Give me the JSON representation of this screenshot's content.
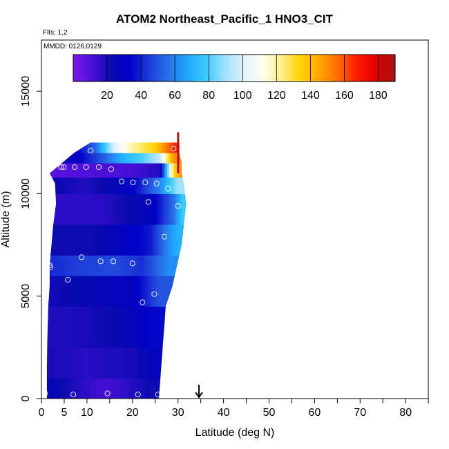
{
  "title": "ATOM2 Northeast_Pacific_1 HNO3_CIT",
  "flights_label": "Flts: 1,2",
  "date_label": "MMDD: 0126,0129",
  "chart_data": {
    "type": "heatmap",
    "title": "ATOM2 Northeast_Pacific_1 HNO3_CIT",
    "xlabel": "Latitude (deg N)",
    "ylabel": "Altitude (m)",
    "xlim": [
      0,
      85
    ],
    "ylim": [
      0,
      17500
    ],
    "x_ticks": [
      0,
      5,
      10,
      20,
      30,
      40,
      50,
      60,
      70,
      80
    ],
    "y_ticks": [
      0,
      5000,
      10000,
      15000
    ],
    "colorbar": {
      "ticks": [
        20,
        40,
        60,
        80,
        100,
        120,
        140,
        160,
        180
      ],
      "range": [
        0,
        190
      ],
      "colors": [
        "#7b1be8",
        "#4a10d8",
        "#0a0ab0",
        "#0000c8",
        "#1e3cd8",
        "#2870e8",
        "#1ea8ff",
        "#3ccaff",
        "#9fe0ff",
        "#dff2ff",
        "#fffff0",
        "#ffee88",
        "#ffd400",
        "#ffa500",
        "#ff6a00",
        "#ff1a00",
        "#e00000",
        "#a01414"
      ]
    },
    "arrow_latitude": 34.6,
    "curtain_edge": {
      "alt": [
        0,
        1500,
        3000,
        4500,
        5500,
        6500,
        7500,
        8500,
        9500,
        10500,
        11000,
        11500,
        12000,
        12500
      ],
      "lat_min": [
        1.2,
        1.2,
        1.3,
        1.5,
        1.8,
        1.8,
        2.2,
        2.6,
        3.2,
        3.0,
        1.8,
        4.5,
        7.2,
        10.8
      ],
      "lat_max": [
        25.8,
        26.3,
        26.8,
        27.3,
        28.8,
        29.8,
        30.8,
        31.3,
        31.8,
        31.3,
        30.8,
        30.8,
        30.3,
        30.3
      ]
    },
    "points": [
      {
        "lat": 0.8,
        "alt": 250
      },
      {
        "lat": 7.0,
        "alt": 200
      },
      {
        "lat": 14.5,
        "alt": 250
      },
      {
        "lat": 21.2,
        "alt": 200
      },
      {
        "lat": 25.6,
        "alt": 200
      },
      {
        "lat": 5.8,
        "alt": 5800
      },
      {
        "lat": 1.8,
        "alt": 6500
      },
      {
        "lat": 2.0,
        "alt": 6400
      },
      {
        "lat": 8.8,
        "alt": 6900
      },
      {
        "lat": 13.0,
        "alt": 6700
      },
      {
        "lat": 15.8,
        "alt": 6700
      },
      {
        "lat": 20.0,
        "alt": 6600
      },
      {
        "lat": 22.2,
        "alt": 4700
      },
      {
        "lat": 24.8,
        "alt": 5100
      },
      {
        "lat": 27.0,
        "alt": 7900
      },
      {
        "lat": 23.5,
        "alt": 9600
      },
      {
        "lat": 30.0,
        "alt": 9400
      },
      {
        "lat": 4.3,
        "alt": 11300
      },
      {
        "lat": 4.9,
        "alt": 11300
      },
      {
        "lat": 7.3,
        "alt": 11300
      },
      {
        "lat": 9.8,
        "alt": 11300
      },
      {
        "lat": 12.6,
        "alt": 11300
      },
      {
        "lat": 15.3,
        "alt": 11200
      },
      {
        "lat": 17.6,
        "alt": 10600
      },
      {
        "lat": 20.1,
        "alt": 10550
      },
      {
        "lat": 22.8,
        "alt": 10550
      },
      {
        "lat": 25.3,
        "alt": 10500
      },
      {
        "lat": 27.8,
        "alt": 10250
      },
      {
        "lat": 10.8,
        "alt": 12100
      },
      {
        "lat": 29.0,
        "alt": 12200
      }
    ],
    "rows": [
      {
        "alt_from": 0,
        "alt_to": 1000,
        "values": [
          [
            0,
            28
          ],
          [
            8,
            18
          ],
          [
            14,
            12
          ],
          [
            24,
            22
          ]
        ]
      },
      {
        "alt_from": 1000,
        "alt_to": 2500,
        "values": [
          [
            0,
            20
          ],
          [
            10,
            17
          ],
          [
            20,
            20
          ],
          [
            25,
            28
          ]
        ]
      },
      {
        "alt_from": 2500,
        "alt_to": 4500,
        "values": [
          [
            0,
            18
          ],
          [
            10,
            20
          ],
          [
            18,
            24
          ],
          [
            24,
            35
          ]
        ]
      },
      {
        "alt_from": 4500,
        "alt_to": 6000,
        "values": [
          [
            0,
            20
          ],
          [
            10,
            24
          ],
          [
            20,
            30
          ],
          [
            26,
            50
          ]
        ]
      },
      {
        "alt_from": 6000,
        "alt_to": 7000,
        "values": [
          [
            0,
            40
          ],
          [
            8,
            45
          ],
          [
            16,
            48
          ],
          [
            22,
            42
          ],
          [
            28,
            62
          ]
        ]
      },
      {
        "alt_from": 7000,
        "alt_to": 8500,
        "values": [
          [
            0,
            22
          ],
          [
            12,
            22
          ],
          [
            24,
            38
          ],
          [
            28,
            62
          ],
          [
            30,
            70
          ]
        ]
      },
      {
        "alt_from": 8500,
        "alt_to": 10000,
        "values": [
          [
            0,
            16
          ],
          [
            14,
            17
          ],
          [
            24,
            28
          ],
          [
            29,
            55
          ],
          [
            31,
            78
          ]
        ]
      },
      {
        "alt_from": 10000,
        "alt_to": 10800,
        "values": [
          [
            0,
            25
          ],
          [
            10,
            18
          ],
          [
            20,
            32
          ],
          [
            26,
            60
          ],
          [
            30,
            90
          ]
        ]
      },
      {
        "alt_from": 10800,
        "alt_to": 11500,
        "values": [
          [
            0,
            8
          ],
          [
            12,
            10
          ],
          [
            20,
            12
          ],
          [
            26,
            18
          ],
          [
            29,
            130
          ],
          [
            30.8,
            150
          ]
        ]
      },
      {
        "alt_from": 11500,
        "alt_to": 12000,
        "values": [
          [
            4,
            20
          ],
          [
            12,
            45
          ],
          [
            18,
            70
          ],
          [
            22,
            80
          ],
          [
            26,
            95
          ],
          [
            29,
            150
          ]
        ]
      },
      {
        "alt_from": 12000,
        "alt_to": 12500,
        "values": [
          [
            7,
            28
          ],
          [
            12,
            55
          ],
          [
            16,
            100
          ],
          [
            20,
            120
          ],
          [
            25,
            135
          ],
          [
            29,
            165
          ]
        ]
      }
    ]
  }
}
